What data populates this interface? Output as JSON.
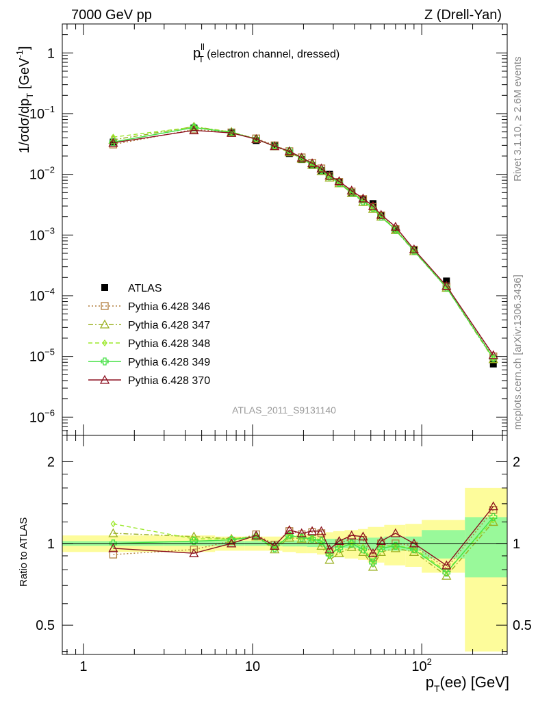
{
  "header": {
    "left": "7000 GeV pp",
    "right": "Z (Drell-Yan)"
  },
  "panel_title": {
    "main": "p",
    "sup": "ll",
    "sub": "T",
    "rest": " (electron channel, dressed)"
  },
  "watermark": "ATLAS_2011_S9131140",
  "side_text": {
    "rivet": "Rivet 3.1.10, ≥ 2.6M events",
    "mcplots": "mcplots.cern.ch [arXiv:1306.3436]"
  },
  "colors": {
    "ATLAS": "#000000",
    "p346": "#b07d3c",
    "p347": "#9ab020",
    "p348": "#9be82a",
    "p349": "#44e044",
    "p370": "#8b0f1e",
    "band_stat": "#99f99a",
    "band_total": "#fdfc9b"
  },
  "chart_data": [
    {
      "type": "line",
      "log_x": true,
      "log_y": true,
      "xlim": [
        0.75,
        320
      ],
      "ylim": [
        5e-07,
        3.0
      ],
      "ylabel": "1/σdσ/dp",
      "ylabel_sub": "T",
      "ylabel_unit": " [GeV",
      "ylabel_unit_sup": "-1",
      "ylabel_unit_end": "]",
      "x_tick_labels": [
        "1",
        "10",
        "10"
      ],
      "x_tick_sup": "2",
      "y_tick_labels": [
        {
          "base": "1",
          "exp": ""
        },
        {
          "base": "10",
          "exp": "−1"
        },
        {
          "base": "10",
          "exp": "−2"
        },
        {
          "base": "10",
          "exp": "−3"
        },
        {
          "base": "10",
          "exp": "−4"
        },
        {
          "base": "10",
          "exp": "−5"
        },
        {
          "base": "10",
          "exp": "−6"
        }
      ],
      "x": [
        1.5,
        4.5,
        7.5,
        10.5,
        13.5,
        16.5,
        19.5,
        22.5,
        25.5,
        28.5,
        32.5,
        38.5,
        45,
        51.5,
        57.5,
        70,
        90,
        140,
        265
      ],
      "series": [
        {
          "name": "ATLAS",
          "key": "ATLAS",
          "marker": "square",
          "values": [
            0.034,
            0.058,
            0.048,
            0.036,
            0.03,
            0.022,
            0.0175,
            0.014,
            0.0115,
            0.01,
            0.0075,
            0.005,
            0.0038,
            0.0033,
            0.0021,
            0.00125,
            0.00058,
            0.000175,
            7.5e-06
          ]
        },
        {
          "name": "Pythia 6.428 346",
          "key": "p346",
          "marker": "open-square",
          "dash": "2,3",
          "values": [
            0.031,
            0.055,
            0.049,
            0.039,
            0.03,
            0.024,
            0.019,
            0.0155,
            0.0125,
            0.0093,
            0.0075,
            0.0052,
            0.0039,
            0.0029,
            0.0021,
            0.00125,
            0.00057,
            0.000142,
            1e-05
          ]
        },
        {
          "name": "Pythia 6.428 347",
          "key": "p347",
          "marker": "open-triangle",
          "dash": "7,3,2,3",
          "values": [
            0.037,
            0.061,
            0.05,
            0.038,
            0.029,
            0.023,
            0.018,
            0.0143,
            0.0112,
            0.0088,
            0.0071,
            0.0049,
            0.0035,
            0.0027,
            0.002,
            0.0012,
            0.00054,
            0.000135,
            9e-06
          ]
        },
        {
          "name": "Pythia 6.428 348",
          "key": "p348",
          "marker": "open-diamond",
          "dash": "6,4",
          "values": [
            0.041,
            0.06,
            0.05,
            0.038,
            0.029,
            0.024,
            0.0185,
            0.0148,
            0.0118,
            0.009,
            0.0073,
            0.0051,
            0.0037,
            0.0028,
            0.0021,
            0.00123,
            0.00056,
            0.00014,
            9.2e-06
          ]
        },
        {
          "name": "Pythia 6.428 349",
          "key": "p349",
          "marker": "open-cross",
          "dash": "",
          "values": [
            0.034,
            0.059,
            0.049,
            0.038,
            0.029,
            0.024,
            0.0183,
            0.0146,
            0.0117,
            0.0092,
            0.0072,
            0.005,
            0.0036,
            0.0028,
            0.002,
            0.00122,
            0.00055,
            0.000136,
            9.4e-06
          ]
        },
        {
          "name": "Pythia 6.428 370",
          "key": "p370",
          "marker": "open-triangle",
          "dash": "",
          "values": [
            0.033,
            0.053,
            0.048,
            0.038,
            0.029,
            0.024,
            0.0188,
            0.0152,
            0.0125,
            0.0095,
            0.0077,
            0.0054,
            0.004,
            0.003,
            0.00215,
            0.00137,
            0.00058,
            0.000145,
            1.05e-05
          ]
        }
      ],
      "legend_position": "middle-left"
    },
    {
      "type": "line",
      "log_x": true,
      "log_y": true,
      "xlim": [
        0.75,
        320
      ],
      "ylim": [
        0.39,
        2.5
      ],
      "ylabel": "Ratio to ATLAS",
      "xlabel": "p",
      "xlabel_sub": "T",
      "xlabel_rest": "(ee) [GeV]",
      "y_tick_labels": [
        "0.5",
        "1",
        "2"
      ],
      "y_ticks": [
        0.5,
        1,
        2
      ],
      "bin_edges": [
        0.75,
        3,
        6,
        9,
        12,
        15,
        18,
        21,
        24,
        27,
        30,
        35,
        42,
        48,
        55,
        60,
        80,
        100,
        180,
        320
      ],
      "band_stat_half": [
        0.02,
        0.02,
        0.02,
        0.02,
        0.02,
        0.025,
        0.025,
        0.03,
        0.03,
        0.04,
        0.04,
        0.04,
        0.05,
        0.05,
        0.05,
        0.06,
        0.06,
        0.12,
        0.25
      ],
      "band_total_half": [
        0.07,
        0.07,
        0.06,
        0.06,
        0.06,
        0.07,
        0.08,
        0.08,
        0.09,
        0.1,
        0.11,
        0.12,
        0.13,
        0.15,
        0.15,
        0.17,
        0.18,
        0.22,
        0.6
      ],
      "x": [
        1.5,
        4.5,
        7.5,
        10.5,
        13.5,
        16.5,
        19.5,
        22.5,
        25.5,
        28.5,
        32.5,
        38.5,
        45,
        51.5,
        57.5,
        70,
        90,
        140,
        265
      ],
      "series": [
        {
          "name": "Pythia 6.428 346",
          "key": "p346",
          "marker": "open-square",
          "dash": "2,3",
          "values": [
            0.91,
            0.95,
            1.02,
            1.08,
            0.99,
            1.11,
            1.08,
            1.1,
            1.09,
            0.93,
            1.0,
            1.04,
            1.03,
            0.89,
            1.0,
            1.0,
            0.98,
            0.81,
            1.33
          ]
        },
        {
          "name": "Pythia 6.428 347",
          "key": "p347",
          "marker": "open-triangle",
          "dash": "7,3,2,3",
          "values": [
            1.09,
            1.06,
            1.04,
            1.06,
            0.95,
            1.05,
            1.04,
            1.03,
            0.98,
            0.87,
            0.92,
            0.97,
            0.93,
            0.82,
            0.93,
            0.96,
            0.93,
            0.76,
            1.2
          ]
        },
        {
          "name": "Pythia 6.428 348",
          "key": "p348",
          "marker": "open-diamond",
          "dash": "6,4",
          "values": [
            1.18,
            1.04,
            1.04,
            1.06,
            0.97,
            1.07,
            1.06,
            1.05,
            1.03,
            0.9,
            0.98,
            1.01,
            0.97,
            0.86,
            0.98,
            0.98,
            0.96,
            0.79,
            1.22
          ]
        },
        {
          "name": "Pythia 6.428 349",
          "key": "p349",
          "marker": "open-cross",
          "dash": "",
          "values": [
            1.0,
            1.02,
            1.03,
            1.06,
            0.96,
            1.07,
            1.05,
            1.04,
            1.02,
            0.91,
            0.96,
            1.0,
            0.95,
            0.85,
            0.96,
            0.98,
            0.95,
            0.78,
            1.25
          ]
        },
        {
          "name": "Pythia 6.428 370",
          "key": "p370",
          "marker": "open-triangle",
          "dash": "",
          "values": [
            0.96,
            0.92,
            1.0,
            1.07,
            0.98,
            1.12,
            1.09,
            1.11,
            1.11,
            0.95,
            1.02,
            1.07,
            1.06,
            0.92,
            1.02,
            1.09,
            1.0,
            0.83,
            1.37
          ]
        }
      ]
    }
  ]
}
